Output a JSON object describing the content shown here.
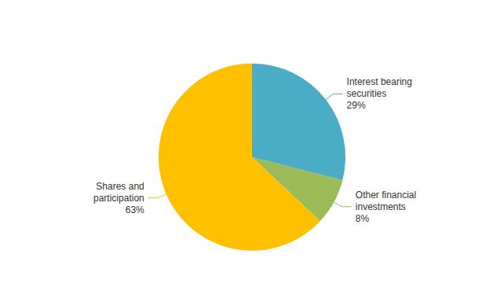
{
  "chart_data": {
    "type": "pie",
    "categories": [
      "Interest bearing\nsecurities",
      "Other financial\ninvestments",
      "Shares and\nparticipation"
    ],
    "values": [
      29,
      8,
      63
    ],
    "value_labels": [
      "29%",
      "8%",
      "63%"
    ],
    "colors": [
      "#4bacc6",
      "#9bbb59",
      "#ffc000"
    ],
    "data_labels": true,
    "legend": false
  }
}
